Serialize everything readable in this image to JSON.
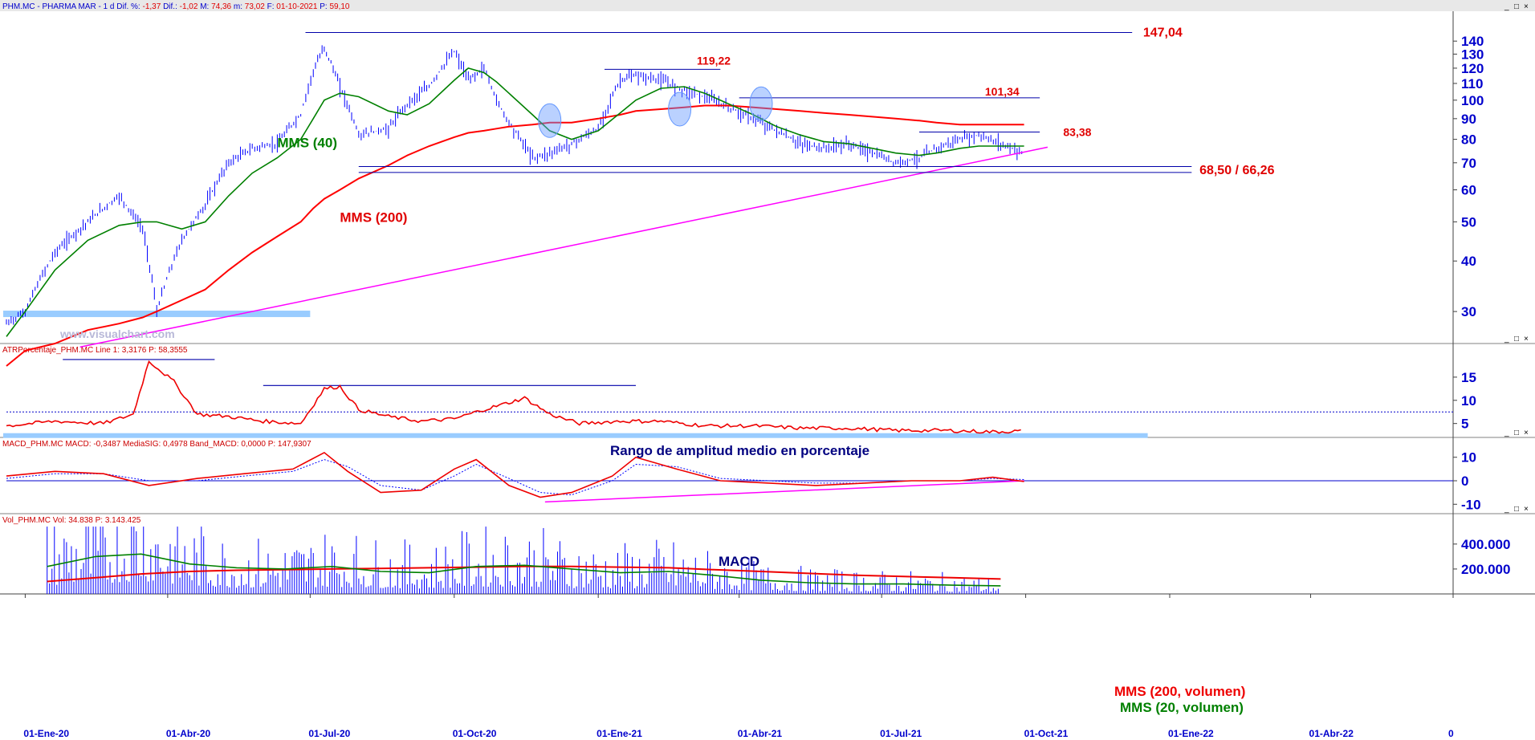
{
  "panels": {
    "price": {
      "header": "PHM.MC - PHARMA MAR - 1 d",
      "header_fields": [
        {
          "label": "Dif. %:",
          "value": "-1,37"
        },
        {
          "label": "Dif.:",
          "value": "-1,02"
        },
        {
          "label": "M:",
          "value": "74,36"
        },
        {
          "label": "m:",
          "value": "73,02"
        },
        {
          "label": "F:",
          "value": "01-10-2021"
        },
        {
          "label": "P:",
          "value": "59,10"
        }
      ],
      "annotations": {
        "level_147": "147,04",
        "level_119": "119,22",
        "level_101": "101,34",
        "level_83": "83,38",
        "support": "68,50 / 66,26",
        "mms40": "MMS (40)",
        "mms200": "MMS (200)"
      },
      "watermark": "www.visualchart.com"
    },
    "atr": {
      "header": "ATRPorcentaje_PHM.MC Line 1: 3,3176  P: 58,3555",
      "title": "Rango de amplitud medio en porcentaje"
    },
    "macd": {
      "header": "MACD_PHM.MC MACD: -0,3487  MediaSIG: 0,4978  Band_MACD: 0,0000  P: 147,9307",
      "title": "MACD"
    },
    "volume": {
      "header": "Vol_PHM.MC Vol: 34.838  P: 3.143.425",
      "legend_200": "MMS (200, volumen)",
      "legend_20": "MMS (20, volumen)"
    }
  },
  "window_controls": [
    "_",
    "□",
    "×"
  ],
  "colors": {
    "price_bars": "#0000ff",
    "mms40": "#008000",
    "mms200": "#ff0000",
    "trendline": "#ff00ff",
    "support_zone": "#99ccff",
    "axis_text": "#0000cc",
    "annotation_red": "#e00000",
    "annotation_blue": "#000080"
  },
  "chart_data": [
    {
      "type": "line",
      "name": "price",
      "y_scale": "log",
      "ylim": [
        25,
        160
      ],
      "y_ticks": [
        30,
        40,
        50,
        60,
        70,
        80,
        90,
        100,
        110,
        120,
        130,
        140
      ],
      "x_tick_labels": [
        "01-Ene-20",
        "01-Abr-20",
        "01-Jul-20",
        "01-Oct-20",
        "01-Ene-21",
        "01-Abr-21",
        "01-Jul-21",
        "01-Oct-21",
        "01-Ene-22",
        "01-Abr-22",
        "0"
      ],
      "x": [
        "2019-12-20",
        "2020-01-01",
        "2020-01-20",
        "2020-02-10",
        "2020-03-01",
        "2020-03-16",
        "2020-03-25",
        "2020-04-10",
        "2020-04-25",
        "2020-05-10",
        "2020-05-25",
        "2020-06-10",
        "2020-06-25",
        "2020-07-03",
        "2020-07-10",
        "2020-07-20",
        "2020-08-01",
        "2020-08-20",
        "2020-09-01",
        "2020-09-15",
        "2020-10-01",
        "2020-10-10",
        "2020-10-20",
        "2020-10-28",
        "2020-11-05",
        "2020-11-20",
        "2020-12-01",
        "2020-12-15",
        "2021-01-01",
        "2021-01-15",
        "2021-01-25",
        "2021-02-10",
        "2021-02-25",
        "2021-03-10",
        "2021-03-25",
        "2021-04-10",
        "2021-04-25",
        "2021-05-10",
        "2021-05-25",
        "2021-06-10",
        "2021-06-25",
        "2021-07-10",
        "2021-07-25",
        "2021-08-05",
        "2021-08-20",
        "2021-09-01",
        "2021-09-15",
        "2021-09-30"
      ],
      "series": [
        {
          "values": [
            28,
            30,
            42,
            50,
            58,
            48,
            30,
            45,
            55,
            70,
            76,
            78,
            92,
            118,
            135,
            108,
            82,
            85,
            98,
            108,
            132,
            112,
            120,
            100,
            88,
            72,
            74,
            78,
            85,
            112,
            115,
            112,
            106,
            102,
            96,
            90,
            84,
            78,
            76,
            78,
            74,
            70,
            72,
            76,
            80,
            82,
            78,
            74
          ]
        }
      ],
      "mms40": [
        26,
        30,
        38,
        45,
        49,
        50,
        50,
        48,
        50,
        58,
        66,
        72,
        80,
        90,
        100,
        104,
        102,
        94,
        92,
        98,
        112,
        120,
        117,
        111,
        104,
        92,
        84,
        80,
        84,
        93,
        100,
        107,
        108,
        104,
        98,
        92,
        86,
        82,
        79,
        78,
        76,
        74,
        73,
        74,
        76,
        77,
        77,
        77
      ],
      "mms200": [
        22,
        24,
        25,
        27,
        28,
        29,
        30,
        32,
        34,
        38,
        42,
        46,
        50,
        54,
        57,
        60,
        64,
        69,
        73,
        77,
        81,
        83,
        84,
        85,
        86,
        87,
        88,
        88,
        90,
        92,
        94,
        95,
        96,
        97,
        97,
        96,
        95,
        94,
        93,
        92,
        91,
        90,
        89,
        88,
        87,
        87,
        87,
        87
      ],
      "horizontal_levels": [
        147.04,
        119.22,
        101.34,
        83.38,
        68.5,
        66.26
      ]
    },
    {
      "type": "line",
      "name": "ATRPorcentaje",
      "ylim": [
        2,
        20
      ],
      "y_ticks": [
        5,
        10,
        15
      ],
      "x": [
        "2019-12-20",
        "2020-01-20",
        "2020-02-20",
        "2020-03-10",
        "2020-03-20",
        "2020-04-05",
        "2020-04-20",
        "2020-05-10",
        "2020-06-01",
        "2020-06-25",
        "2020-07-10",
        "2020-07-20",
        "2020-08-01",
        "2020-08-20",
        "2020-09-10",
        "2020-10-01",
        "2020-10-20",
        "2020-11-05",
        "2020-11-15",
        "2020-12-01",
        "2020-12-20",
        "2021-01-15",
        "2021-02-10",
        "2021-03-10",
        "2021-04-10",
        "2021-05-10",
        "2021-06-10",
        "2021-07-10",
        "2021-08-10",
        "2021-09-10",
        "2021-09-30"
      ],
      "series": [
        {
          "values": [
            4.5,
            5.5,
            5.0,
            7.0,
            18.5,
            14.0,
            7.0,
            6.5,
            5.5,
            5.0,
            12.5,
            13.0,
            8.0,
            6.5,
            5.5,
            6.0,
            8.0,
            9.5,
            10.5,
            7.0,
            5.0,
            5.5,
            5.5,
            4.5,
            4.5,
            4.0,
            4.0,
            3.5,
            3.5,
            3.2,
            3.4
          ]
        }
      ],
      "reference_line": 7.5
    },
    {
      "type": "line",
      "name": "MACD",
      "ylim": [
        -14,
        14
      ],
      "y_ticks": [
        -10,
        0,
        10
      ],
      "x": [
        "2019-12-20",
        "2020-01-20",
        "2020-02-20",
        "2020-03-20",
        "2020-04-20",
        "2020-05-20",
        "2020-06-20",
        "2020-07-10",
        "2020-07-25",
        "2020-08-15",
        "2020-09-10",
        "2020-10-01",
        "2020-10-15",
        "2020-11-05",
        "2020-11-25",
        "2020-12-15",
        "2021-01-10",
        "2021-01-25",
        "2021-02-20",
        "2021-03-20",
        "2021-04-20",
        "2021-05-20",
        "2021-06-20",
        "2021-07-20",
        "2021-08-20",
        "2021-09-10",
        "2021-09-30"
      ],
      "series": [
        {
          "name": "MACD",
          "values": [
            2,
            4,
            3,
            -2,
            1,
            3,
            5,
            12,
            4,
            -5,
            -4,
            5,
            9,
            -2,
            -7,
            -5,
            2,
            10,
            5,
            0,
            -1,
            -2,
            -1,
            0,
            0,
            1.5,
            -0.3
          ]
        },
        {
          "name": "MediaSIG",
          "values": [
            1,
            3,
            3,
            0,
            0,
            2,
            4,
            9,
            6,
            -2,
            -4,
            2,
            7,
            1,
            -5,
            -6,
            0,
            7,
            6,
            1,
            0,
            -1,
            -1,
            0,
            0,
            1,
            0.5
          ]
        }
      ]
    },
    {
      "type": "bar",
      "name": "Volumen",
      "ylim": [
        0,
        560000
      ],
      "y_ticks": [
        200000,
        400000
      ],
      "y_tick_labels": [
        "200.000",
        "400.000"
      ],
      "x": [
        "2020-01",
        "2020-02",
        "2020-03",
        "2020-04",
        "2020-05",
        "2020-06",
        "2020-07",
        "2020-08",
        "2020-09",
        "2020-10",
        "2020-11",
        "2020-12",
        "2021-01",
        "2021-02",
        "2021-03",
        "2021-04",
        "2021-05",
        "2021-06",
        "2021-07",
        "2021-08",
        "2021-09"
      ],
      "series": [
        {
          "name": "Vol",
          "values": [
            280000,
            320000,
            420000,
            260000,
            200000,
            190000,
            230000,
            190000,
            170000,
            230000,
            240000,
            190000,
            170000,
            190000,
            150000,
            110000,
            90000,
            80000,
            80000,
            70000,
            60000
          ]
        },
        {
          "name": "MMS (200, volumen)",
          "values": [
            100000,
            130000,
            160000,
            180000,
            190000,
            195000,
            200000,
            205000,
            210000,
            215000,
            220000,
            220000,
            215000,
            210000,
            195000,
            180000,
            165000,
            150000,
            140000,
            130000,
            120000
          ]
        },
        {
          "name": "MMS (20, volumen)",
          "values": [
            220000,
            300000,
            320000,
            240000,
            210000,
            200000,
            220000,
            180000,
            170000,
            220000,
            230000,
            200000,
            170000,
            180000,
            150000,
            110000,
            90000,
            80000,
            80000,
            70000,
            65000
          ]
        }
      ]
    }
  ]
}
